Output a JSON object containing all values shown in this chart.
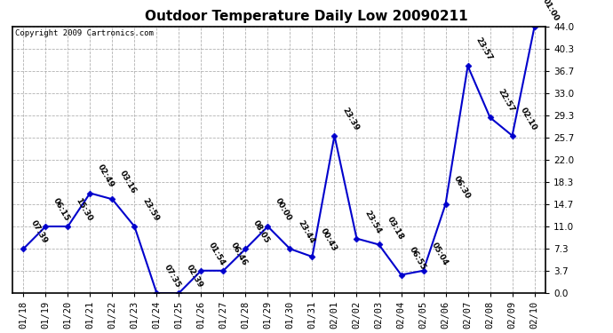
{
  "title": "Outdoor Temperature Daily Low 20090211",
  "copyright": "Copyright 2009 Cartronics.com",
  "line_color": "#0000CC",
  "marker_color": "#0000CC",
  "background_color": "#ffffff",
  "grid_color": "#aaaaaa",
  "text_color": "#000000",
  "ylim": [
    0.0,
    44.0
  ],
  "yticks": [
    0.0,
    3.7,
    7.3,
    11.0,
    14.7,
    18.3,
    22.0,
    25.7,
    29.3,
    33.0,
    36.7,
    40.3,
    44.0
  ],
  "x_labels": [
    "01/18",
    "01/19",
    "01/20",
    "01/21",
    "01/22",
    "01/23",
    "01/24",
    "01/25",
    "01/26",
    "01/27",
    "01/28",
    "01/29",
    "01/30",
    "01/31",
    "02/01",
    "02/02",
    "02/03",
    "02/04",
    "02/05",
    "02/06",
    "02/07",
    "02/08",
    "02/09",
    "02/10"
  ],
  "y_values": [
    7.3,
    11.0,
    11.0,
    16.5,
    15.5,
    11.0,
    0.0,
    0.0,
    3.7,
    3.7,
    7.3,
    11.0,
    7.3,
    6.0,
    26.0,
    9.0,
    8.0,
    3.0,
    3.7,
    14.7,
    37.5,
    29.0,
    26.0,
    44.0
  ],
  "point_labels": [
    "07:39",
    "06:15",
    "15:30",
    "02:49",
    "03:16",
    "23:59",
    "07:35",
    "02:39",
    "01:54",
    "06:46",
    "08:05",
    "00:00",
    "23:44",
    "00:43",
    "23:39",
    "23:54",
    "03:18",
    "06:55",
    "05:04",
    "06:30",
    "23:57",
    "22:57",
    "02:10",
    "01:00"
  ],
  "title_fontsize": 11,
  "tick_fontsize": 7.5,
  "label_fontsize": 6.5
}
